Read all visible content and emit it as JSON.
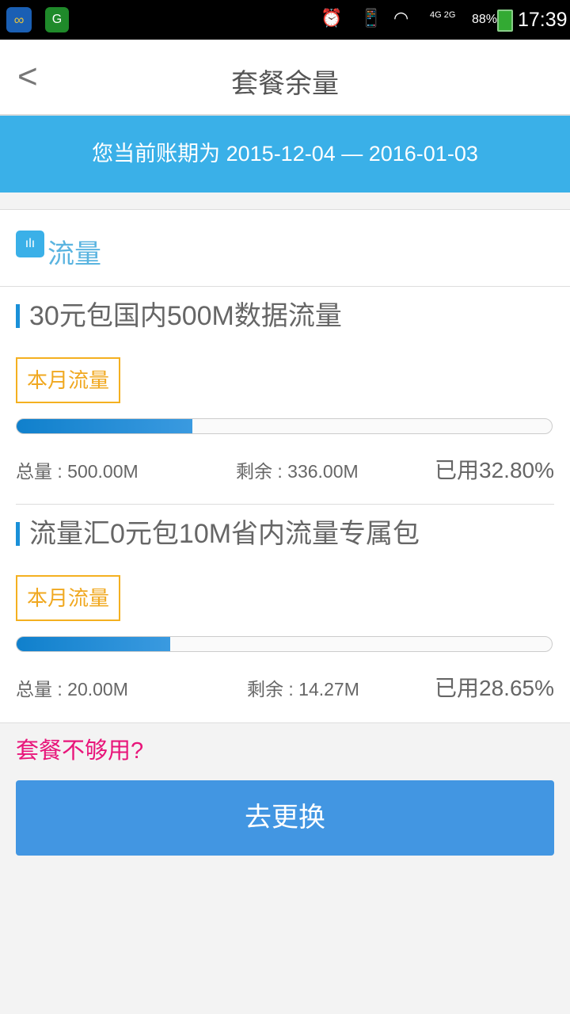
{
  "status_bar": {
    "network": "4G 2G",
    "battery": "88%",
    "time": "17:39"
  },
  "header": {
    "title": "套餐余量"
  },
  "banner": {
    "text": "您当前账期为  2015-12-04 — 2016-01-03"
  },
  "section": {
    "label": "流量"
  },
  "packages": [
    {
      "name": "30元包国内500M数据流量",
      "tag": "本月流量",
      "total": "总量 : 500.00M",
      "remaining": "剩余 : 336.00M",
      "used": "已用32.80%",
      "used_fraction": 0.328
    },
    {
      "name": "流量汇0元包10M省内流量专属包",
      "tag": "本月流量",
      "total": "总量 : 20.00M",
      "remaining": "剩余 : 14.27M",
      "used": "已用28.65%",
      "used_fraction": 0.2865
    }
  ],
  "footer": {
    "prompt": "套餐不够用?",
    "button": "去更换"
  }
}
